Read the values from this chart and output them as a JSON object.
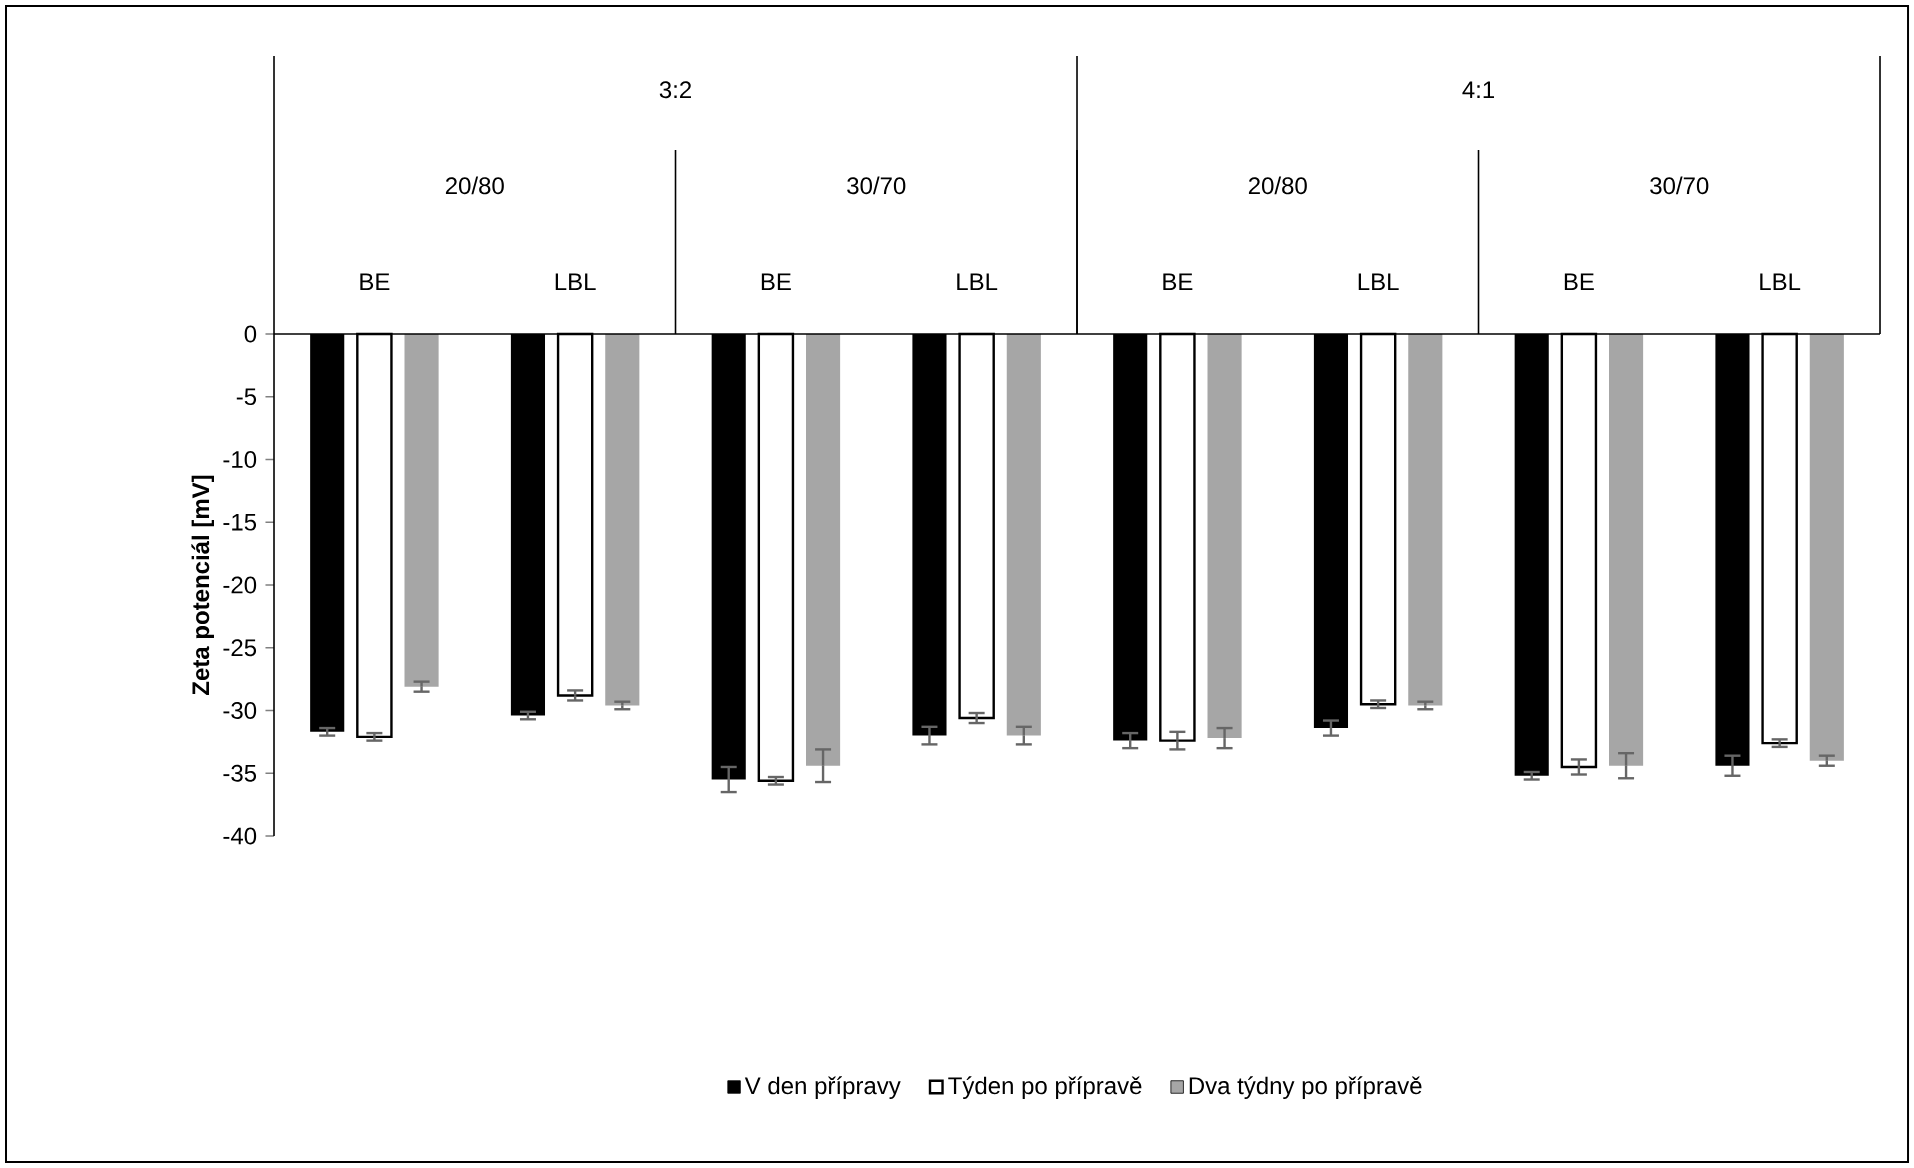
{
  "chart_data": {
    "type": "bar",
    "ylabel": "Zeta potenciál [mV]",
    "categories": [
      "BE",
      "LBL",
      "BE",
      "LBL",
      "BE",
      "LBL",
      "BE",
      "LBL"
    ],
    "annotations": [
      "3:2",
      "4:1",
      "20/80",
      "30/70",
      "20/80",
      "30/70"
    ],
    "series": [
      {
        "name": "V den přípravy",
        "color": "#000000",
        "values": [
          -31.7,
          -30.4,
          -35.5,
          -32.0,
          -32.4,
          -31.4,
          -35.2,
          -34.4
        ],
        "errors": [
          0.3,
          0.3,
          1.0,
          0.7,
          0.6,
          0.6,
          0.3,
          0.8
        ]
      },
      {
        "name": "Týden po přípravě",
        "color": "#000000",
        "values": [
          -32.1,
          -28.8,
          -35.6,
          -30.6,
          -32.4,
          -29.5,
          -34.5,
          -32.6
        ],
        "errors": [
          0.3,
          0.4,
          0.3,
          0.4,
          0.7,
          0.3,
          0.6,
          0.3
        ]
      },
      {
        "name": "Dva týdny po přípravě",
        "color": "#a6a6a6",
        "values": [
          -28.1,
          -29.6,
          -34.4,
          -32.0,
          -32.2,
          -29.6,
          -34.4,
          -34.0
        ],
        "errors": [
          0.4,
          0.3,
          1.3,
          0.7,
          0.8,
          0.3,
          1.0,
          0.4
        ]
      }
    ],
    "ylim": [
      -40,
      0
    ],
    "yticks": [
      0,
      -5,
      -10,
      -15,
      -20,
      -25,
      -30,
      -35,
      -40
    ],
    "legend": "bottom"
  }
}
